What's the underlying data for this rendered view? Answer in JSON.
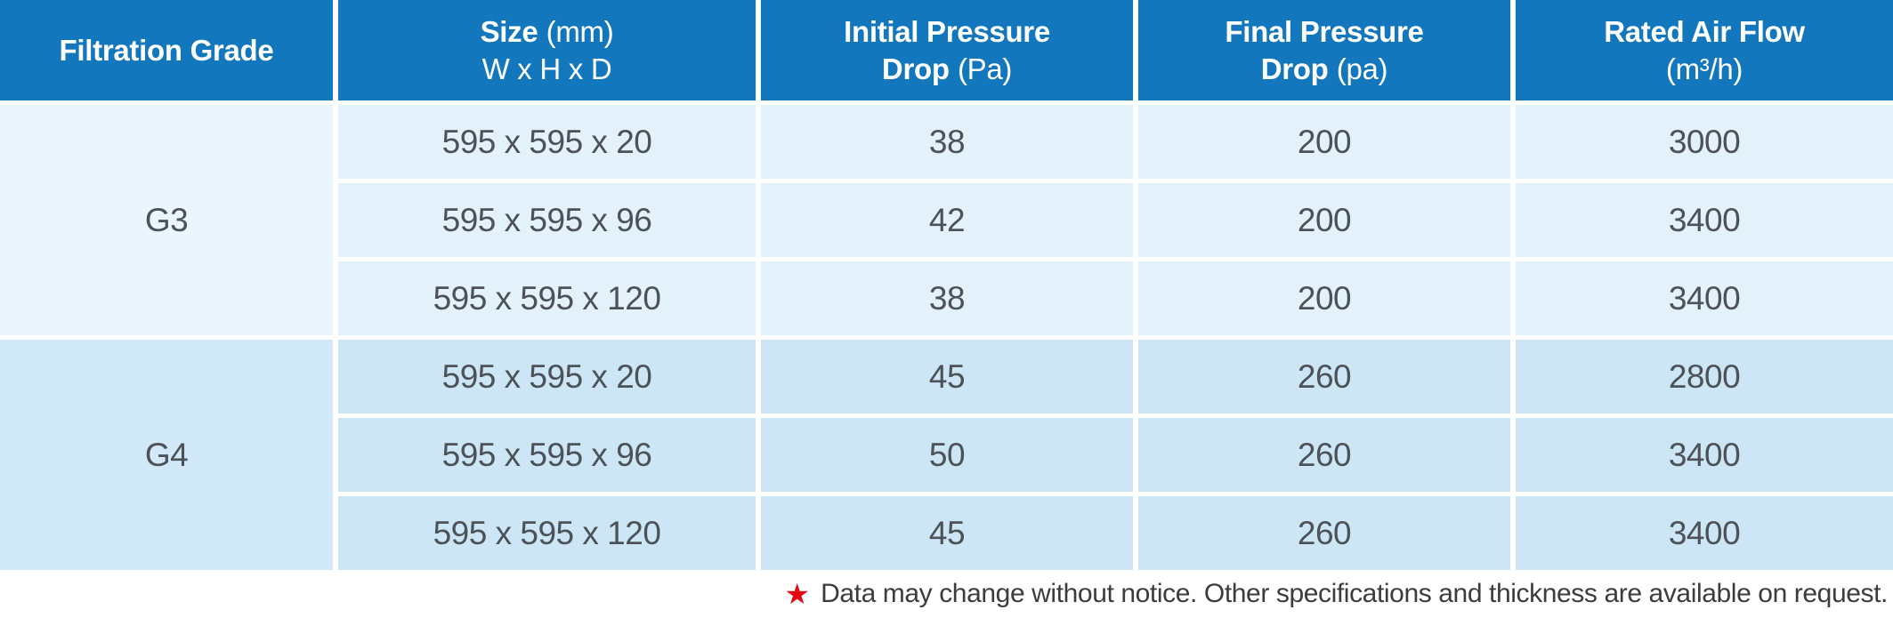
{
  "table": {
    "header": {
      "grade": {
        "title": "Filtration Grade"
      },
      "size": {
        "title": "Size",
        "unit": "(mm)",
        "sub": "W x H x D"
      },
      "initial": {
        "line1": "Initial Pressure",
        "line2_bold": "Drop",
        "unit": "(Pa)"
      },
      "final": {
        "line1": "Final Pressure",
        "line2_bold": "Drop",
        "unit": "(pa)"
      },
      "airflow": {
        "title": "Rated Air Flow",
        "unit": "(m³/h)"
      }
    },
    "groups": [
      {
        "grade": "G3",
        "rows": [
          {
            "size": "595 x 595 x 20",
            "initial": "38",
            "final": "200",
            "airflow": "3000"
          },
          {
            "size": "595 x 595 x 96",
            "initial": "42",
            "final": "200",
            "airflow": "3400"
          },
          {
            "size": "595 x 595 x 120",
            "initial": "38",
            "final": "200",
            "airflow": "3400"
          }
        ]
      },
      {
        "grade": "G4",
        "rows": [
          {
            "size": "595 x 595 x 20",
            "initial": "45",
            "final": "260",
            "airflow": "2800"
          },
          {
            "size": "595 x 595 x 96",
            "initial": "50",
            "final": "260",
            "airflow": "3400"
          },
          {
            "size": "595 x 595 x 120",
            "initial": "45",
            "final": "260",
            "airflow": "3400"
          }
        ]
      }
    ]
  },
  "footnote": {
    "star": "★",
    "text": "Data may change without notice. Other specifications and thickness are available on request."
  },
  "colors": {
    "header_bg": "#1377be",
    "header_text": "#ffffff",
    "g3_row_bg": "#e3f1fb",
    "g3_grade_bg": "#eaf5fd",
    "g4_row_bg": "#cce6f6",
    "g4_grade_bg": "#d1e9f8",
    "data_text": "#4c5257",
    "note_text": "#3c3c3c",
    "star_red": "#e30613"
  }
}
